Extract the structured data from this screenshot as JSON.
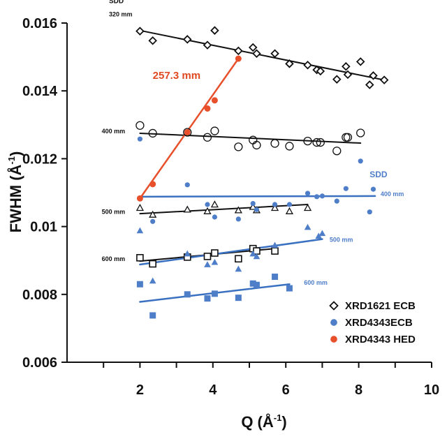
{
  "chart_data": {
    "type": "scatter",
    "title": "",
    "xlabel": "Q (Å",
    "xlabel_sup": "-1",
    "xlabel_close": ")",
    "ylabel": "FWHM (Å",
    "ylabel_sup": "-1",
    "ylabel_close": ")",
    "xlim": [
      0,
      10
    ],
    "ylim": [
      0.006,
      0.016
    ],
    "grid": false,
    "x_ticks": [
      2,
      4,
      6,
      8,
      10
    ],
    "x_tick_labels": [
      "2",
      "4",
      "6",
      "8",
      "10"
    ],
    "y_ticks": [
      0.006,
      0.008,
      0.01,
      0.012,
      0.014,
      0.016
    ],
    "y_tick_labels": [
      "0.006",
      "0.008",
      "0.01",
      "0.012",
      "0.014",
      "0.016"
    ],
    "legend_position": "bottom-right",
    "colors": {
      "black": "#111111",
      "blue": "#4f7ec9",
      "blue_line": "#3a70c0",
      "red": "#e8502b",
      "red_text": "#e04a22",
      "axis": "#111111"
    },
    "legend": [
      {
        "label": "XRD1621 ECB",
        "marker": "diamond-open",
        "color": "#111111"
      },
      {
        "label": "XRD4343ECB",
        "marker": "circle-filled",
        "color": "#4f7ec9"
      },
      {
        "label": "XRD4343 HED",
        "marker": "circle-filled",
        "color": "#e8502b"
      }
    ],
    "series": [
      {
        "name": "XRD1621 ECB 320 mm",
        "marker": "diamond-open",
        "color": "#111111",
        "x": [
          2.0,
          2.35,
          3.3,
          3.85,
          4.05,
          4.7,
          5.1,
          5.2,
          5.7,
          6.1,
          6.6,
          6.85,
          6.95,
          7.4,
          7.65,
          7.7,
          8.05,
          8.3,
          8.4,
          8.7
        ],
        "y": [
          0.01576,
          0.01548,
          0.01552,
          0.01535,
          0.01578,
          0.01518,
          0.01528,
          0.0151,
          0.0151,
          0.0148,
          0.01476,
          0.01462,
          0.01458,
          0.01434,
          0.01472,
          0.01448,
          0.01486,
          0.01418,
          0.01445,
          0.01432
        ],
        "fit": [
          [
            2.0,
            0.01578
          ],
          [
            8.7,
            0.01432
          ]
        ]
      },
      {
        "name": "XRD1621 ECB 400 mm",
        "marker": "circle-open",
        "color": "#111111",
        "x": [
          2.0,
          2.35,
          3.3,
          3.85,
          4.05,
          4.7,
          5.1,
          5.2,
          5.7,
          6.1,
          6.6,
          6.85,
          6.95,
          7.4,
          7.65,
          7.7,
          8.05
        ],
        "y": [
          0.01298,
          0.01275,
          0.01278,
          0.01263,
          0.01282,
          0.01235,
          0.01255,
          0.0124,
          0.01245,
          0.01237,
          0.01252,
          0.01248,
          0.01248,
          0.01223,
          0.01263,
          0.01263,
          0.01276
        ],
        "fit": [
          [
            2.0,
            0.01275
          ],
          [
            8.05,
            0.01246
          ]
        ]
      },
      {
        "name": "XRD1621 ECB 500 mm",
        "marker": "triangle-open",
        "color": "#111111",
        "x": [
          2.0,
          2.35,
          3.3,
          3.85,
          4.05,
          4.7,
          5.1,
          5.2,
          5.7,
          6.1,
          6.6
        ],
        "y": [
          0.01055,
          0.01035,
          0.0105,
          0.01045,
          0.01065,
          0.01048,
          0.01058,
          0.01048,
          0.01055,
          0.01045,
          0.01055
        ],
        "fit": [
          [
            2.0,
            0.01038
          ],
          [
            6.6,
            0.01065
          ]
        ]
      },
      {
        "name": "XRD1621 ECB 600 mm",
        "marker": "square-open",
        "color": "#111111",
        "x": [
          2.0,
          2.35,
          3.3,
          3.85,
          4.05,
          4.7,
          5.1,
          5.2,
          5.7
        ],
        "y": [
          0.00908,
          0.0089,
          0.0091,
          0.00912,
          0.00922,
          0.00905,
          0.00935,
          0.00928,
          0.00928
        ],
        "fit": [
          [
            2.0,
            0.00898
          ],
          [
            5.7,
            0.00935
          ]
        ]
      },
      {
        "name": "XRD4343ECB 400 mm",
        "marker": "circle-filled",
        "color": "#4f7ec9",
        "x": [
          2.0,
          2.35,
          3.3,
          3.85,
          4.05,
          4.7,
          5.1,
          5.2,
          5.7,
          6.1,
          6.6,
          6.85,
          7.0,
          7.4,
          7.65,
          8.05,
          8.3,
          8.4
        ],
        "y": [
          0.01258,
          0.01015,
          0.01123,
          0.01065,
          0.01028,
          0.01022,
          0.01068,
          0.0105,
          0.01065,
          0.01065,
          0.01098,
          0.01088,
          0.0109,
          0.01075,
          0.01112,
          0.01193,
          0.01043,
          0.0111
        ],
        "fit": [
          [
            2.0,
            0.01088
          ],
          [
            8.45,
            0.0109
          ]
        ]
      },
      {
        "name": "XRD4343ECB 500 mm",
        "marker": "triangle-filled",
        "color": "#4f7ec9",
        "x": [
          2.0,
          2.35,
          3.3,
          3.85,
          4.05,
          4.7,
          5.1,
          5.2,
          5.7,
          6.6,
          6.9,
          7.0
        ],
        "y": [
          0.00988,
          0.0084,
          0.0092,
          0.00888,
          0.00895,
          0.00875,
          0.0092,
          0.00912,
          0.00945,
          0.00998,
          0.00972,
          0.0098
        ],
        "fit": [
          [
            2.0,
            0.00888
          ],
          [
            7.0,
            0.00963
          ]
        ]
      },
      {
        "name": "XRD4343ECB 600 mm",
        "marker": "square-filled",
        "color": "#4f7ec9",
        "x": [
          2.0,
          2.35,
          3.3,
          3.85,
          4.05,
          4.7,
          5.1,
          5.2,
          5.7,
          6.1
        ],
        "y": [
          0.0083,
          0.00738,
          0.008,
          0.00788,
          0.00802,
          0.0079,
          0.00832,
          0.00828,
          0.00852,
          0.00818
        ],
        "fit": [
          [
            2.0,
            0.00778
          ],
          [
            6.1,
            0.0083
          ]
        ]
      },
      {
        "name": "XRD4343 HED 257.3 mm",
        "marker": "circle-filled",
        "color": "#e8502b",
        "x": [
          2.0,
          2.35,
          3.3,
          3.85,
          4.05,
          4.7
        ],
        "y": [
          0.01083,
          0.01125,
          0.01278,
          0.01348,
          0.01372,
          0.01495
        ],
        "fit": [
          [
            2.0,
            0.01083
          ],
          [
            4.7,
            0.01495
          ]
        ]
      }
    ],
    "annotations": [
      {
        "text": "SDD",
        "x": 1.15,
        "y": 0.01659,
        "color": "#111111",
        "size": 10
      },
      {
        "text": "320 mm",
        "x": 1.15,
        "y": 0.0162,
        "color": "#111111",
        "size": 9
      },
      {
        "text": "400 mm",
        "x": 0.95,
        "y": 0.01275,
        "color": "#111111",
        "size": 9
      },
      {
        "text": "500 mm",
        "x": 0.95,
        "y": 0.01037,
        "color": "#111111",
        "size": 9
      },
      {
        "text": "600 mm",
        "x": 0.95,
        "y": 0.00898,
        "color": "#111111",
        "size": 9
      },
      {
        "text": "257.3 mm",
        "x": 2.35,
        "y": 0.01435,
        "color": "#e04a22",
        "size": 15
      },
      {
        "text": "SDD",
        "x": 8.3,
        "y": 0.01145,
        "color": "#4f7ec9",
        "size": 12
      },
      {
        "text": "400 mm",
        "x": 8.6,
        "y": 0.0109,
        "color": "#4f7ec9",
        "size": 9
      },
      {
        "text": "500 mm",
        "x": 7.2,
        "y": 0.00955,
        "color": "#4f7ec9",
        "size": 9
      },
      {
        "text": "600 mm",
        "x": 6.5,
        "y": 0.00828,
        "color": "#4f7ec9",
        "size": 9
      }
    ]
  }
}
